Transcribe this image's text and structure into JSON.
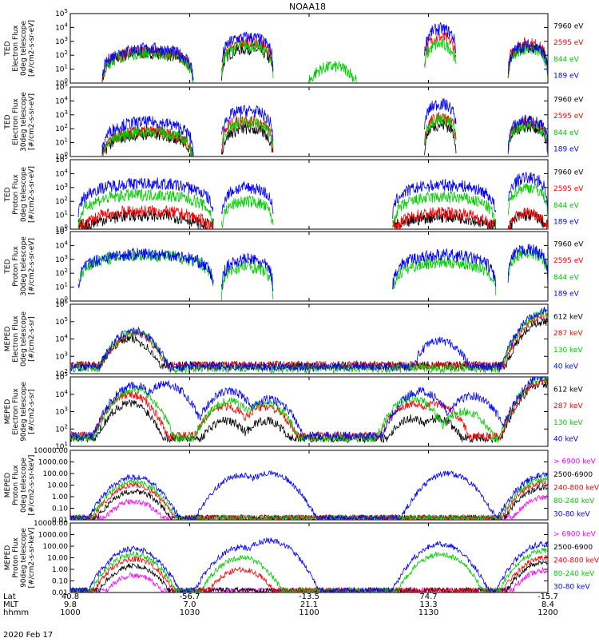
{
  "title": "NOAA18",
  "date_label": "2020 Feb 17",
  "x_axis": {
    "row_labels": [
      "Lat",
      "MLT",
      "hhmm"
    ],
    "ticks": [
      {
        "lat": "40.8",
        "mlt": "9.8",
        "hhmm": "1000"
      },
      {
        "lat": "-56.7",
        "mlt": "7.0",
        "hhmm": "1030"
      },
      {
        "lat": "-13.5",
        "mlt": "21.1",
        "hhmm": "1100"
      },
      {
        "lat": "74.7",
        "mlt": "13.3",
        "hhmm": "1130"
      },
      {
        "lat": "-15.7",
        "mlt": "8.4",
        "hhmm": "1200"
      }
    ],
    "range_minutes": [
      0,
      120
    ]
  },
  "colors": {
    "black": "#000000",
    "red": "#ff0000",
    "green": "#00cc00",
    "blue": "#0000ff",
    "magenta": "#ff00ff"
  },
  "chart_data": [
    {
      "type": "line",
      "panel": "ted-electron-0deg",
      "ylabel_lines": [
        "TED",
        "Electron Flux",
        "0deg telescope",
        "[#/cm2-s-sr-eV]"
      ],
      "y_scale": "log",
      "ylim": [
        1,
        100000
      ],
      "yticks": [
        "10^0",
        "10^1",
        "10^2",
        "10^3",
        "10^4",
        "10^5"
      ],
      "legend": [
        {
          "label": "7960 eV",
          "color": "black"
        },
        {
          "label": "2595 eV",
          "color": "red"
        },
        {
          "label": "844 eV",
          "color": "green"
        },
        {
          "label": "189 eV",
          "color": "blue"
        }
      ],
      "series": [
        {
          "name": "7960 eV",
          "color": "black",
          "segments": [
            [
              8,
              31,
              150
            ],
            [
              38,
              51,
              300
            ],
            [
              110,
              120,
              400
            ]
          ]
        },
        {
          "name": "2595 eV",
          "color": "red",
          "segments": [
            [
              8,
              31,
              200
            ],
            [
              38,
              51,
              1000
            ],
            [
              89,
              97,
              2000
            ],
            [
              110,
              120,
              700
            ]
          ]
        },
        {
          "name": "844 eV",
          "color": "green",
          "segments": [
            [
              8,
              31,
              150
            ],
            [
              38,
              51,
              500
            ],
            [
              60,
              72,
              15
            ],
            [
              89,
              97,
              600
            ],
            [
              110,
              120,
              300
            ]
          ]
        },
        {
          "name": "189 eV",
          "color": "blue",
          "segments": [
            [
              8,
              31,
              300
            ],
            [
              38,
              51,
              2000
            ],
            [
              89,
              97,
              8000
            ],
            [
              110,
              120,
              500
            ]
          ]
        }
      ]
    },
    {
      "type": "line",
      "panel": "ted-electron-30deg",
      "ylabel_lines": [
        "TED",
        "Electron Flux",
        "30deg telescope",
        "[#/cm2-s-sr-eV]"
      ],
      "y_scale": "log",
      "ylim": [
        1,
        100000
      ],
      "yticks": [
        "10^0",
        "10^1",
        "10^2",
        "10^3",
        "10^4",
        "10^5"
      ],
      "legend": [
        {
          "label": "7960 eV",
          "color": "black"
        },
        {
          "label": "2595 eV",
          "color": "red"
        },
        {
          "label": "844 eV",
          "color": "green"
        },
        {
          "label": "189 eV",
          "color": "blue"
        }
      ],
      "series": [
        {
          "name": "7960 eV",
          "color": "black",
          "segments": [
            [
              8,
              31,
              40
            ],
            [
              38,
              51,
              100
            ],
            [
              89,
              97,
              200
            ],
            [
              110,
              120,
              150
            ]
          ]
        },
        {
          "name": "2595 eV",
          "color": "red",
          "segments": [
            [
              8,
              31,
              60
            ],
            [
              38,
              51,
              400
            ],
            [
              89,
              97,
              600
            ],
            [
              110,
              120,
              300
            ]
          ]
        },
        {
          "name": "844 eV",
          "color": "green",
          "segments": [
            [
              8,
              31,
              60
            ],
            [
              38,
              51,
              300
            ],
            [
              89,
              97,
              500
            ],
            [
              110,
              120,
              200
            ]
          ]
        },
        {
          "name": "189 eV",
          "color": "blue",
          "segments": [
            [
              8,
              31,
              300
            ],
            [
              38,
              51,
              2000
            ],
            [
              89,
              97,
              6000
            ],
            [
              110,
              120,
              400
            ]
          ]
        }
      ]
    },
    {
      "type": "line",
      "panel": "ted-proton-0deg",
      "ylabel_lines": [
        "TED",
        "Proton Flux",
        "0deg telescope",
        "[#/cm2-s-sr-eV]"
      ],
      "y_scale": "log",
      "ylim": [
        1,
        100000
      ],
      "yticks": [
        "10^0",
        "10^1",
        "10^2",
        "10^3",
        "10^4",
        "10^5"
      ],
      "legend": [
        {
          "label": "7960 eV",
          "color": "black"
        },
        {
          "label": "2595 eV",
          "color": "red"
        },
        {
          "label": "844 eV",
          "color": "green"
        },
        {
          "label": "189 eV",
          "color": "blue"
        }
      ],
      "series": [
        {
          "name": "7960 eV",
          "color": "black",
          "segments": [
            [
              2,
              36,
              10
            ],
            [
              81,
              107,
              8
            ],
            [
              110,
              120,
              10
            ]
          ]
        },
        {
          "name": "2595 eV",
          "color": "red",
          "segments": [
            [
              2,
              36,
              20
            ],
            [
              81,
              107,
              15
            ],
            [
              110,
              120,
              15
            ]
          ]
        },
        {
          "name": "844 eV",
          "color": "green",
          "segments": [
            [
              2,
              36,
              300
            ],
            [
              38,
              51,
              100
            ],
            [
              81,
              107,
              200
            ],
            [
              110,
              120,
              1000
            ]
          ]
        },
        {
          "name": "189 eV",
          "color": "blue",
          "segments": [
            [
              2,
              36,
              2000
            ],
            [
              38,
              51,
              1000
            ],
            [
              81,
              107,
              1500
            ],
            [
              110,
              120,
              5000
            ]
          ]
        }
      ]
    },
    {
      "type": "line",
      "panel": "ted-proton-30deg",
      "ylabel_lines": [
        "TED",
        "Proton Flux",
        "30deg telescope",
        "[#/cm2-s-sr-eV]"
      ],
      "y_scale": "log",
      "ylim": [
        1,
        100000
      ],
      "yticks": [
        "10^0",
        "10^1",
        "10^2",
        "10^3",
        "10^4",
        "10^5"
      ],
      "legend": [
        {
          "label": "7960 eV",
          "color": "black"
        },
        {
          "label": "2595 eV",
          "color": "red"
        },
        {
          "label": "844 eV",
          "color": "green"
        },
        {
          "label": "189 eV",
          "color": "blue"
        }
      ],
      "series": [
        {
          "name": "844 eV",
          "color": "green",
          "segments": [
            [
              2,
              36,
              2000
            ],
            [
              38,
              51,
              300
            ],
            [
              81,
              107,
              600
            ],
            [
              110,
              120,
              3000
            ]
          ]
        },
        {
          "name": "189 eV",
          "color": "blue",
          "segments": [
            [
              2,
              36,
              2500
            ],
            [
              38,
              51,
              1000
            ],
            [
              81,
              107,
              2000
            ],
            [
              110,
              120,
              5000
            ]
          ]
        }
      ]
    },
    {
      "type": "line",
      "panel": "meped-electron-0deg",
      "ylabel_lines": [
        "MEPED",
        "Electron Flux",
        "0deg telescope",
        "[#/cm2-s-sr]"
      ],
      "y_scale": "log",
      "ylim": [
        100,
        1000000
      ],
      "yticks": [
        "10^2",
        "10^3",
        "10^4",
        "10^5",
        "10^6"
      ],
      "legend": [
        {
          "label": "612 keV",
          "color": "black"
        },
        {
          "label": "287 keV",
          "color": "red"
        },
        {
          "label": "130 keV",
          "color": "green"
        },
        {
          "label": "40 keV",
          "color": "blue"
        }
      ],
      "series": [
        {
          "name": "612 keV",
          "color": "black",
          "peaks": [
            [
              15,
              10000
            ],
            [
              119,
              100000
            ]
          ],
          "floor": 300
        },
        {
          "name": "287 keV",
          "color": "red",
          "peaks": [
            [
              16,
              20000
            ],
            [
              119,
              200000
            ]
          ],
          "floor": 300
        },
        {
          "name": "130 keV",
          "color": "green",
          "peaks": [
            [
              16,
              25000
            ],
            [
              119,
              300000
            ]
          ],
          "floor": 200
        },
        {
          "name": "40 keV",
          "color": "blue",
          "peaks": [
            [
              16,
              30000
            ],
            [
              93,
              8000
            ],
            [
              119,
              400000
            ]
          ],
          "floor": 250
        }
      ]
    },
    {
      "type": "line",
      "panel": "meped-electron-90deg",
      "ylabel_lines": [
        "MEPED",
        "Electron Flux",
        "90deg telescope",
        "[#/cm2-s-sr]"
      ],
      "y_scale": "log",
      "ylim": [
        10,
        100000
      ],
      "yticks": [
        "10^1",
        "10^2",
        "10^3",
        "10^4",
        "10^5"
      ],
      "legend": [
        {
          "label": "612 keV",
          "color": "black"
        },
        {
          "label": "287 keV",
          "color": "red"
        },
        {
          "label": "130 keV",
          "color": "green"
        },
        {
          "label": "40 keV",
          "color": "blue"
        }
      ],
      "series": [
        {
          "name": "612 keV",
          "color": "black",
          "peaks": [
            [
              15,
              3000
            ],
            [
              39,
              300
            ],
            [
              49,
              300
            ],
            [
              86,
              400
            ],
            [
              92,
              400
            ],
            [
              119,
              40000
            ]
          ],
          "floor": 30
        },
        {
          "name": "287 keV",
          "color": "red",
          "peaks": [
            [
              15,
              10000
            ],
            [
              39,
              2000
            ],
            [
              49,
              2000
            ],
            [
              86,
              3000
            ],
            [
              92,
              3000
            ],
            [
              119,
              60000
            ]
          ],
          "floor": 40
        },
        {
          "name": "130 keV",
          "color": "green",
          "peaks": [
            [
              16,
              20000
            ],
            [
              40,
              4000
            ],
            [
              49,
              3000
            ],
            [
              86,
              6000
            ],
            [
              99,
              1000
            ],
            [
              119,
              80000
            ]
          ],
          "floor": 30
        },
        {
          "name": "40 keV",
          "color": "blue",
          "peaks": [
            [
              16,
              30000
            ],
            [
              24,
              40000
            ],
            [
              40,
              15000
            ],
            [
              50,
              5000
            ],
            [
              88,
              15000
            ],
            [
              101,
              8000
            ],
            [
              119,
              100000
            ]
          ],
          "floor": 40
        }
      ]
    },
    {
      "type": "line",
      "panel": "meped-proton-0deg",
      "ylabel_lines": [
        "MEPED",
        "Proton Flux",
        "0deg telescope",
        "[#/cm2-s-sr-keV]"
      ],
      "y_scale": "log",
      "ylim": [
        0.01,
        10000
      ],
      "yticks": [
        "0.01",
        "0.10",
        "1.00",
        "10.00",
        "100.00",
        "1000.00",
        "10000.00"
      ],
      "legend": [
        {
          "label": "> 6900 keV",
          "color": "magenta"
        },
        {
          "label": "2500-6900",
          "color": "black"
        },
        {
          "label": "240-800 keV",
          "color": "red"
        },
        {
          "label": "80-240 keV",
          "color": "green"
        },
        {
          "label": "30-80 keV",
          "color": "blue"
        }
      ],
      "series": [
        {
          "name": "> 6900 keV",
          "color": "magenta",
          "peaks": [
            [
              16,
              0.4
            ],
            [
              119,
              0.8
            ]
          ]
        },
        {
          "name": "2500-6900",
          "color": "black",
          "peaks": [
            [
              16,
              3
            ],
            [
              119,
              6
            ]
          ]
        },
        {
          "name": "240-800 keV",
          "color": "red",
          "peaks": [
            [
              16,
              10
            ],
            [
              119,
              15
            ]
          ]
        },
        {
          "name": "80-240 keV",
          "color": "green",
          "peaks": [
            [
              16,
              20
            ],
            [
              119,
              30
            ]
          ]
        },
        {
          "name": "30-80 keV",
          "color": "blue",
          "peaks": [
            [
              16,
              50
            ],
            [
              43,
              70
            ],
            [
              50,
              100
            ],
            [
              95,
              100
            ],
            [
              119,
              70
            ]
          ]
        }
      ]
    },
    {
      "type": "line",
      "panel": "meped-proton-90deg",
      "ylabel_lines": [
        "MEPED",
        "Proton Flux",
        "90deg telescope",
        "[#/cm2-s-sr-keV]"
      ],
      "y_scale": "log",
      "ylim": [
        0.01,
        10000
      ],
      "yticks": [
        "0.01",
        "0.10",
        "1.00",
        "10.00",
        "100.00",
        "1000.00",
        "10000.00"
      ],
      "legend": [
        {
          "label": "> 6900 keV",
          "color": "magenta"
        },
        {
          "label": "2500-6900",
          "color": "black"
        },
        {
          "label": "240-800 keV",
          "color": "red"
        },
        {
          "label": "80-240 keV",
          "color": "green"
        },
        {
          "label": "30-80 keV",
          "color": "blue"
        }
      ],
      "series": [
        {
          "name": "> 6900 keV",
          "color": "magenta",
          "peaks": [
            [
              16,
              0.3
            ],
            [
              119,
              0.8
            ]
          ]
        },
        {
          "name": "2500-6900",
          "color": "black",
          "peaks": [
            [
              16,
              2
            ],
            [
              119,
              4
            ]
          ]
        },
        {
          "name": "240-800 keV",
          "color": "red",
          "peaks": [
            [
              16,
              8
            ],
            [
              43,
              1
            ],
            [
              119,
              10
            ]
          ]
        },
        {
          "name": "80-240 keV",
          "color": "green",
          "peaks": [
            [
              16,
              20
            ],
            [
              43,
              10
            ],
            [
              93,
              20
            ],
            [
              119,
              40
            ]
          ]
        },
        {
          "name": "30-80 keV",
          "color": "blue",
          "peaks": [
            [
              16,
              60
            ],
            [
              43,
              80
            ],
            [
              50,
              300
            ],
            [
              93,
              150
            ],
            [
              119,
              150
            ]
          ]
        }
      ]
    }
  ]
}
